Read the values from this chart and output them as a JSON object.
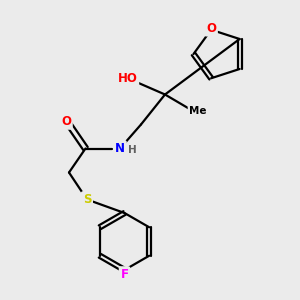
{
  "background_color": "#ebebeb",
  "atom_colors": {
    "O": "#ff0000",
    "N": "#0000ff",
    "S": "#cccc00",
    "F": "#ff00ff",
    "C": "#000000",
    "H": "#606060"
  },
  "bond_color": "#000000",
  "bond_width": 1.6,
  "font_size_atoms": 8.5
}
